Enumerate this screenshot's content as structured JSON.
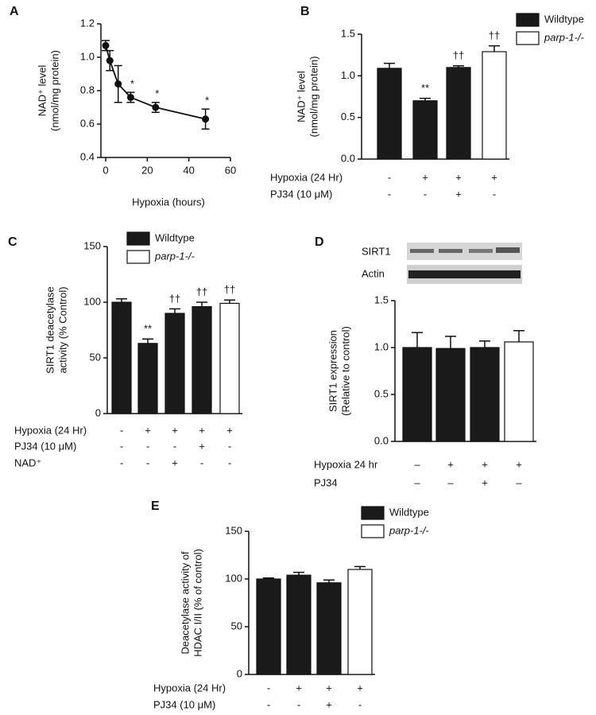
{
  "chart_data": [
    {
      "type": "line",
      "panel_label": "A",
      "ylabel": [
        "NAD⁺ level",
        "(nmol/mg protein)"
      ],
      "xlabel": "Hypoxia (hours)",
      "x": [
        0,
        2,
        6,
        12,
        24,
        48
      ],
      "values": [
        1.07,
        0.98,
        0.84,
        0.76,
        0.7,
        0.63
      ],
      "errors": [
        0.03,
        0.06,
        0.11,
        0.03,
        0.03,
        0.06
      ],
      "annotations": [
        null,
        null,
        null,
        "*",
        "*",
        "*"
      ],
      "color": "#111111",
      "xlim": [
        0,
        60
      ],
      "xticks": [
        0,
        20,
        40,
        60
      ],
      "ylim": [
        0.4,
        1.2
      ],
      "yticks": [
        0.4,
        0.6,
        0.8,
        {
          "value": 1,
          "label": "1.0"
        },
        1.2
      ]
    },
    {
      "type": "bar",
      "panel_label": "B",
      "ylabel": [
        "NAD⁺ level",
        "(nmol/mg protein)"
      ],
      "values": [
        1.09,
        0.7,
        1.1,
        1.29
      ],
      "errors": [
        0.06,
        0.03,
        0.02,
        0.07
      ],
      "colors": [
        "#1a1a1a",
        "#1a1a1a",
        "#1a1a1a",
        "#ffffff"
      ],
      "annotations": [
        null,
        "**",
        "††",
        "††"
      ],
      "legend": [
        {
          "name": "Wildtype",
          "color": "#1a1a1a"
        },
        {
          "name": "parp-1-/-",
          "color": "#ffffff"
        }
      ],
      "conditions": [
        {
          "label": "Hypoxia (24 Hr)",
          "values": [
            "-",
            "+",
            "+",
            "+"
          ]
        },
        {
          "label": "PJ34 (10 μM)",
          "values": [
            "-",
            "-",
            "+",
            "-"
          ]
        }
      ],
      "ylim": [
        0,
        1.5
      ],
      "yticks": [
        {
          "value": 0,
          "label": "0.0"
        },
        0.5,
        {
          "value": 1,
          "label": "1.0"
        },
        1.5
      ]
    },
    {
      "type": "bar",
      "panel_label": "C",
      "ylabel": [
        "SIRT1 deacetylase",
        "activity (% Control)"
      ],
      "values": [
        100,
        63,
        90,
        96,
        99
      ],
      "errors": [
        3,
        4,
        4,
        4,
        3
      ],
      "colors": [
        "#1a1a1a",
        "#1a1a1a",
        "#1a1a1a",
        "#1a1a1a",
        "#ffffff"
      ],
      "annotations": [
        null,
        "**",
        "††",
        "††",
        "††"
      ],
      "legend": [
        {
          "name": "Wildtype",
          "color": "#1a1a1a"
        },
        {
          "name": "parp-1-/-",
          "color": "#ffffff"
        }
      ],
      "conditions": [
        {
          "label": "Hypoxia (24 Hr)",
          "values": [
            "-",
            "+",
            "+",
            "+",
            "+"
          ]
        },
        {
          "label": "PJ34 (10 μM)",
          "values": [
            "-",
            "-",
            "-",
            "+",
            "-"
          ]
        },
        {
          "label": "NAD⁺",
          "values": [
            "-",
            "-",
            "+",
            "-",
            "-"
          ]
        }
      ],
      "ylim": [
        0,
        150
      ],
      "yticks": [
        0,
        50,
        100,
        150
      ]
    },
    {
      "type": "bar",
      "panel_label": "D",
      "blot_labels": [
        "SIRT1",
        "Actin"
      ],
      "ylabel": [
        "SIRT1 expression",
        "(Relative to control)"
      ],
      "values": [
        1.0,
        0.99,
        1.0,
        1.06
      ],
      "errors": [
        0.16,
        0.13,
        0.07,
        0.12
      ],
      "colors": [
        "#1a1a1a",
        "#1a1a1a",
        "#1a1a1a",
        "#ffffff"
      ],
      "annotations": [
        null,
        null,
        null,
        null
      ],
      "conditions": [
        {
          "label": "Hypoxia 24 hr",
          "values": [
            "–",
            "+",
            "+",
            "+"
          ]
        },
        {
          "label": "PJ34",
          "values": [
            "–",
            "–",
            "+",
            "–"
          ]
        }
      ],
      "ylim": [
        0,
        1.5
      ],
      "yticks": [
        {
          "value": 0,
          "label": "0.0"
        },
        0.5,
        {
          "value": 1,
          "label": "1.0"
        },
        1.5
      ]
    },
    {
      "type": "bar",
      "panel_label": "E",
      "ylabel": [
        "Deacetylase activity of",
        "HDAC I/II (% of control)"
      ],
      "values": [
        100,
        104,
        96,
        110
      ],
      "errors": [
        1,
        3,
        3,
        3
      ],
      "colors": [
        "#1a1a1a",
        "#1a1a1a",
        "#1a1a1a",
        "#ffffff"
      ],
      "annotations": [
        null,
        null,
        null,
        null
      ],
      "legend": [
        {
          "name": "Wildtype",
          "color": "#1a1a1a"
        },
        {
          "name": "parp-1-/-",
          "color": "#ffffff"
        }
      ],
      "conditions": [
        {
          "label": "Hypoxia (24 Hr)",
          "values": [
            "-",
            "+",
            "+",
            "+"
          ]
        },
        {
          "label": "PJ34 (10 μM)",
          "values": [
            "-",
            "-",
            "+",
            "-"
          ]
        }
      ],
      "ylim": [
        0,
        150
      ],
      "yticks": [
        0,
        50,
        100,
        150
      ]
    }
  ]
}
